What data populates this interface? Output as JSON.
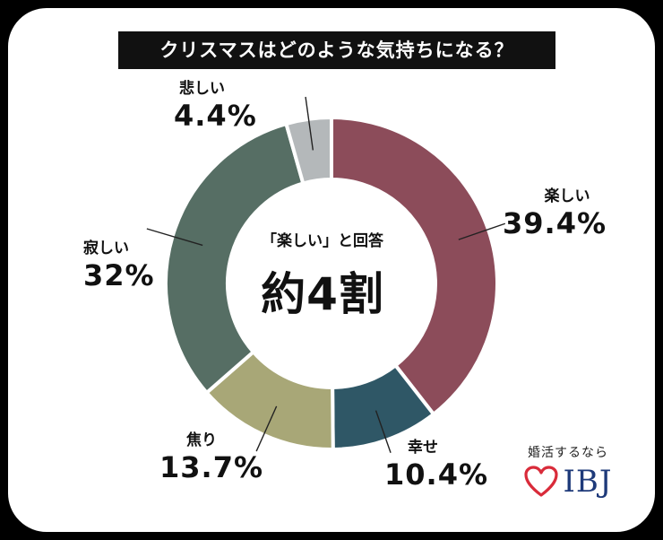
{
  "title": "クリスマスはどのような気持ちになる？",
  "center": {
    "subtitle": "「楽しい」と回答",
    "headline": "約4割"
  },
  "brand": {
    "tagline": "婚活するなら",
    "logo_text": "IBJ",
    "logo_icon": "heart-icon",
    "logo_color": "#d92b3a",
    "text_color": "#1e3a7a"
  },
  "chart_data": {
    "type": "pie",
    "title": "クリスマスはどのような気持ちになる？",
    "donut": true,
    "slices": [
      {
        "label": "楽しい",
        "value": 39.4,
        "value_label": "39.4%",
        "color": "#8c4c5a"
      },
      {
        "label": "幸せ",
        "value": 10.4,
        "value_label": "10.4%",
        "color": "#2f5766"
      },
      {
        "label": "焦り",
        "value": 13.7,
        "value_label": "13.7%",
        "color": "#a8a777"
      },
      {
        "label": "寂しい",
        "value": 32,
        "value_label": "32%",
        "color": "#566e64"
      },
      {
        "label": "悲しい",
        "value": 4.4,
        "value_label": "4.4%",
        "color": "#b4b8ba"
      }
    ]
  }
}
